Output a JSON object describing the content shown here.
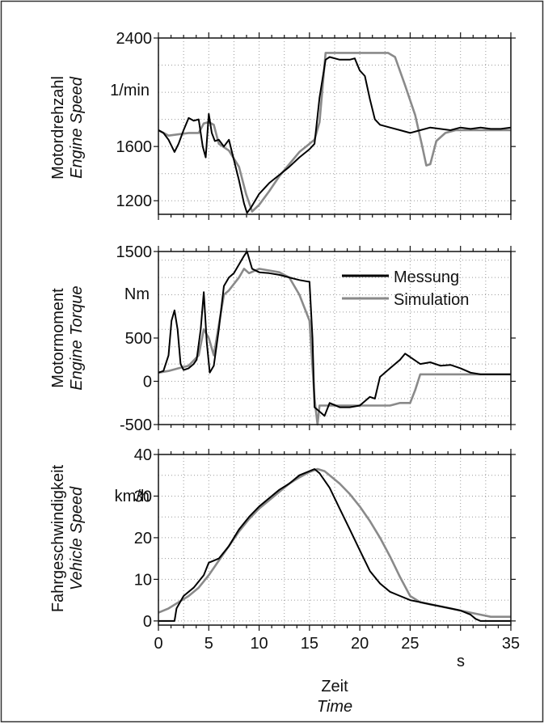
{
  "chart_data": [
    {
      "type": "line",
      "ylabel_de": "Motordrehzahl",
      "ylabel_en": "Engine Speed",
      "unit": "1/min",
      "ylim": [
        1100,
        2400
      ],
      "yticks": [
        1200,
        1600,
        2400
      ],
      "grid": true,
      "series": [
        {
          "name": "Messung",
          "color": "#000000",
          "x": [
            0,
            0.5,
            1,
            1.6,
            2,
            2.5,
            3,
            3.5,
            4,
            4.4,
            4.7,
            5,
            5.3,
            5.6,
            6,
            6.5,
            7,
            7.5,
            8,
            8.5,
            8.8,
            9.2,
            10,
            11,
            12,
            13,
            14,
            15,
            15.5,
            16,
            16.6,
            17,
            18,
            19,
            19.5,
            20,
            20.5,
            21,
            21.5,
            22,
            23,
            24,
            25,
            26,
            27,
            28,
            29,
            30,
            31,
            32,
            33,
            34,
            35
          ],
          "y": [
            1720,
            1700,
            1650,
            1560,
            1620,
            1720,
            1810,
            1790,
            1800,
            1600,
            1520,
            1840,
            1700,
            1640,
            1650,
            1600,
            1650,
            1500,
            1350,
            1180,
            1110,
            1150,
            1250,
            1330,
            1390,
            1450,
            1520,
            1580,
            1620,
            1960,
            2240,
            2260,
            2240,
            2240,
            2250,
            2160,
            2120,
            1950,
            1800,
            1760,
            1740,
            1720,
            1700,
            1720,
            1740,
            1730,
            1720,
            1740,
            1730,
            1740,
            1730,
            1730,
            1740
          ]
        },
        {
          "name": "Simulation",
          "color": "#8a8a8a",
          "x": [
            0,
            1,
            2,
            3,
            4,
            4.5,
            5,
            5.5,
            6,
            7,
            8,
            8.7,
            9.3,
            10,
            11,
            12,
            13,
            14,
            15,
            15.5,
            16,
            16.6,
            17,
            18,
            19,
            20,
            21,
            22,
            22.8,
            23.5,
            24.5,
            25.5,
            26.2,
            26.6,
            27,
            27.6,
            28.5,
            29.5,
            31,
            33,
            35
          ],
          "y": [
            1720,
            1680,
            1690,
            1700,
            1700,
            1770,
            1780,
            1760,
            1620,
            1570,
            1450,
            1250,
            1120,
            1170,
            1270,
            1380,
            1470,
            1560,
            1620,
            1650,
            1780,
            2290,
            2290,
            2290,
            2290,
            2290,
            2290,
            2290,
            2290,
            2260,
            2050,
            1830,
            1600,
            1460,
            1470,
            1640,
            1700,
            1720,
            1720,
            1720,
            1720
          ]
        }
      ]
    },
    {
      "type": "line",
      "ylabel_de": "Motormoment",
      "ylabel_en": "Engine Torque",
      "unit": "Nm",
      "ylim": [
        -500,
        1500
      ],
      "yticks": [
        -500,
        0,
        500,
        1500
      ],
      "grid": true,
      "legend": {
        "placement": "top-right",
        "entries": [
          "Messung",
          "Simulation"
        ]
      },
      "series": [
        {
          "name": "Messung",
          "color": "#000000",
          "x": [
            0,
            0.5,
            1,
            1.3,
            1.6,
            1.9,
            2.2,
            2.5,
            3,
            3.5,
            3.8,
            4.2,
            4.5,
            4.8,
            5.1,
            5.5,
            6,
            6.5,
            7,
            7.5,
            8,
            8.5,
            8.8,
            9.3,
            10,
            11,
            12,
            13,
            14,
            15,
            15.3,
            15.5,
            16,
            16.5,
            17,
            18,
            19,
            20,
            21,
            21.5,
            22,
            23,
            24,
            24.5,
            25,
            26,
            27,
            28,
            29,
            30,
            31,
            32,
            33,
            34,
            35
          ],
          "y": [
            100,
            120,
            300,
            700,
            820,
            600,
            200,
            130,
            150,
            200,
            250,
            600,
            1030,
            450,
            100,
            180,
            600,
            1100,
            1200,
            1250,
            1350,
            1450,
            1500,
            1300,
            1260,
            1250,
            1230,
            1200,
            1170,
            1150,
            500,
            -300,
            -350,
            -400,
            -250,
            -300,
            -300,
            -280,
            -180,
            -200,
            50,
            150,
            250,
            320,
            280,
            200,
            220,
            180,
            190,
            150,
            100,
            80,
            80,
            80,
            80
          ]
        },
        {
          "name": "Simulation",
          "color": "#8a8a8a",
          "x": [
            0,
            1,
            2,
            3,
            4,
            4.5,
            5,
            5.5,
            6,
            6.5,
            7,
            8,
            8.5,
            9,
            10,
            11,
            12,
            13,
            14,
            15,
            15.5,
            15.8,
            16,
            17,
            18,
            19,
            20,
            21,
            22,
            23,
            24,
            25,
            25.5,
            26,
            27,
            28,
            29,
            30,
            31,
            32,
            33,
            34,
            35
          ],
          "y": [
            100,
            120,
            150,
            180,
            300,
            600,
            500,
            300,
            650,
            1000,
            1050,
            1200,
            1300,
            1250,
            1300,
            1280,
            1260,
            1200,
            1000,
            700,
            -200,
            -500,
            -280,
            -280,
            -280,
            -280,
            -280,
            -280,
            -280,
            -280,
            -250,
            -250,
            -100,
            80,
            80,
            80,
            80,
            80,
            80,
            80,
            80,
            80,
            80
          ]
        }
      ]
    },
    {
      "type": "line",
      "ylabel_de": "Fahrgeschwindigkeit",
      "ylabel_en": "Vehicle Speed",
      "unit": "km/h",
      "ylim": [
        -1,
        40
      ],
      "yticks": [
        0,
        10,
        20,
        30,
        40
      ],
      "grid": true,
      "series": [
        {
          "name": "Messung",
          "color": "#000000",
          "x": [
            0,
            1,
            1.6,
            1.8,
            2.5,
            3.5,
            4.5,
            5,
            6,
            7,
            8,
            9,
            10,
            11,
            12,
            13,
            14,
            15,
            15.5,
            16,
            17,
            18,
            19,
            20,
            21,
            22,
            23,
            24,
            25,
            26,
            27,
            28,
            29,
            30,
            31,
            31.5,
            32,
            33,
            34,
            35
          ],
          "y": [
            0,
            0,
            0,
            3,
            6,
            8,
            11,
            14,
            15,
            18,
            22,
            25,
            27.5,
            29.5,
            31.5,
            33,
            35,
            36,
            36.5,
            35.5,
            32,
            27,
            22,
            17,
            12,
            9,
            7,
            6,
            5,
            4.5,
            4,
            3.5,
            3,
            2.5,
            1.5,
            0.5,
            0,
            0,
            0,
            0
          ]
        },
        {
          "name": "Simulation",
          "color": "#8a8a8a",
          "x": [
            0,
            1,
            2,
            3,
            4,
            5,
            6,
            7,
            8,
            9,
            10,
            11,
            12,
            13,
            14,
            15,
            15.8,
            16.5,
            17,
            18,
            19,
            20,
            21,
            22,
            23,
            24,
            25,
            26,
            27,
            28,
            29,
            30,
            31,
            32,
            33,
            34,
            35
          ],
          "y": [
            2,
            3,
            4.5,
            6,
            8,
            11,
            14.5,
            18,
            21.5,
            24.5,
            27,
            29,
            31,
            33,
            34.5,
            35.8,
            36.5,
            36,
            35,
            33,
            30.5,
            27.5,
            24,
            20,
            15.5,
            10.5,
            6,
            4.5,
            4,
            3.5,
            3,
            2.5,
            2,
            1.5,
            1,
            1,
            1
          ]
        }
      ]
    }
  ],
  "x_axis": {
    "label_de": "Zeit",
    "label_en": "Time",
    "unit": "s",
    "xlim": [
      0,
      35
    ],
    "ticks": [
      0,
      5,
      10,
      15,
      20,
      25,
      35
    ]
  }
}
